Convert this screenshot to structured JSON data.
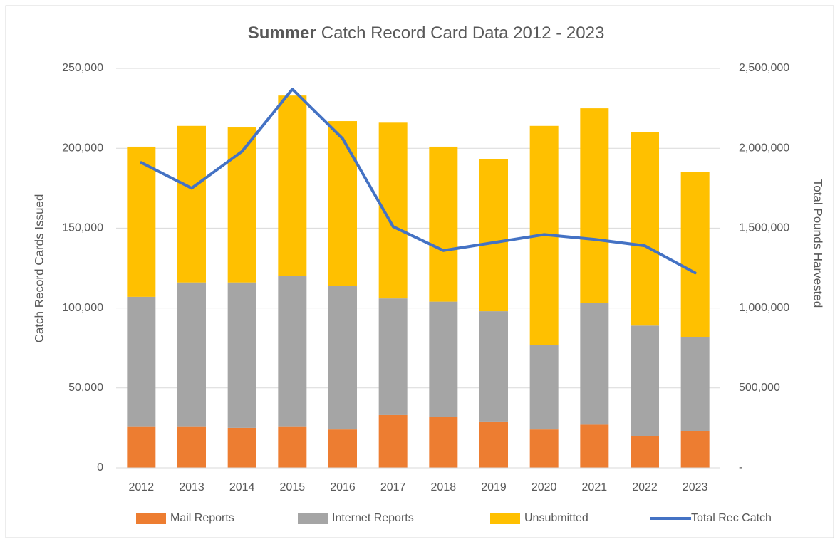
{
  "chart_data": {
    "type": "bar",
    "stacked": true,
    "title": {
      "bold": "Summer",
      "rest": "Catch Record Card Data 2012 - 2023"
    },
    "ylabel": "Catch Record Cards Issued",
    "y2label": "Total Pounds Harvested",
    "categories": [
      "2012",
      "2013",
      "2014",
      "2015",
      "2016",
      "2017",
      "2018",
      "2019",
      "2020",
      "2021",
      "2022",
      "2023"
    ],
    "series": [
      {
        "name": "Mail Reports",
        "type": "bar",
        "color": "#ed7d31",
        "values": [
          26000,
          26000,
          25000,
          26000,
          24000,
          33000,
          32000,
          29000,
          24000,
          27000,
          20000,
          23000
        ]
      },
      {
        "name": "Internet Reports",
        "type": "bar",
        "color": "#a5a5a5",
        "values": [
          81000,
          90000,
          91000,
          94000,
          90000,
          73000,
          72000,
          69000,
          53000,
          76000,
          69000,
          59000
        ]
      },
      {
        "name": "Unsubmitted",
        "type": "bar",
        "color": "#ffc000",
        "values": [
          94000,
          98000,
          97000,
          113000,
          103000,
          110000,
          97000,
          95000,
          137000,
          122000,
          121000,
          103000
        ]
      },
      {
        "name": "Total Rec Catch",
        "type": "line",
        "axis": "y2",
        "color": "#4472c4",
        "values": [
          1910000,
          1750000,
          1980000,
          2370000,
          2060000,
          1510000,
          1360000,
          1410000,
          1460000,
          1430000,
          1390000,
          1220000
        ]
      }
    ],
    "ylim": [
      0,
      250000
    ],
    "yticks": [
      0,
      {
        "value": 50000,
        "label": "50,000"
      },
      {
        "value": 100000,
        "label": "100,000"
      },
      {
        "value": 150000,
        "label": "150,000"
      },
      {
        "value": 200000,
        "label": "200,000"
      },
      {
        "value": 250000,
        "label": "250,000"
      }
    ],
    "y2lim": [
      0,
      2500000
    ],
    "y2ticks": [
      {
        "value": 0,
        "label": "-"
      },
      {
        "value": 500000,
        "label": "500,000"
      },
      {
        "value": 1000000,
        "label": "1,000,000"
      },
      {
        "value": 1500000,
        "label": "1,500,000"
      },
      {
        "value": 2000000,
        "label": "2,000,000"
      },
      {
        "value": 2500000,
        "label": "2,500,000"
      }
    ],
    "grid": true,
    "legend": "bottom"
  }
}
